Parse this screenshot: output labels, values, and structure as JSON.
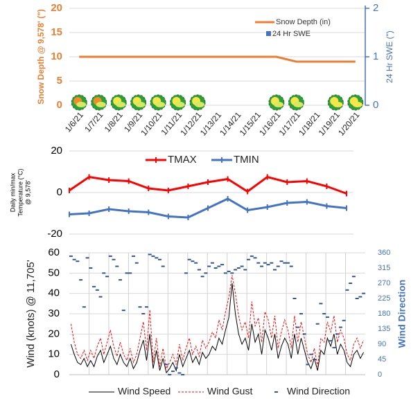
{
  "chart_data": [
    {
      "type": "line",
      "yaxis_label": "Snow Depth @ 9,578' (\")",
      "y2axis_label": "24 Hr SWE (\")",
      "categories": [
        "1/6/21",
        "1/7/21",
        "1/8/21",
        "1/9/21",
        "1/10/21",
        "1/11/21",
        "1/12/21",
        "1/13/21",
        "1/14/21",
        "1/15/21",
        "1/16/21",
        "1/17/21",
        "1/18/21",
        "1/19/21",
        "1/20/21"
      ],
      "series": [
        {
          "name": "Snow Depth (in)",
          "color": "#ed7d31",
          "style": "line",
          "values": [
            10,
            10,
            10,
            10,
            10,
            10,
            10,
            10,
            10,
            10,
            10,
            9,
            9,
            9,
            9
          ]
        },
        {
          "name": "24 Hr SWE",
          "color": "#4472c4",
          "style": "bar",
          "axis": "y2",
          "values": [
            0,
            0,
            0,
            0,
            0,
            0,
            0,
            0,
            0,
            0,
            0,
            0,
            0,
            0,
            0
          ]
        }
      ],
      "ylim": [
        0,
        20
      ],
      "yticks": [
        0,
        5,
        10,
        15,
        20
      ],
      "y2lim": [
        0,
        2
      ],
      "y2ticks": [
        0,
        1,
        2
      ],
      "grid": true
    },
    {
      "type": "line",
      "yaxis_label": [
        "Daily min/max",
        "Temperature (°C)",
        "@ 9,578'"
      ],
      "categories": [
        null,
        null,
        null,
        null,
        null,
        null,
        null,
        null,
        null,
        null,
        null,
        null,
        null,
        null,
        null
      ],
      "series": [
        {
          "name": "TMAX",
          "color": "#ff0000",
          "style": "line",
          "values": [
            1,
            7.5,
            6,
            5.5,
            2,
            1,
            3,
            5,
            6.5,
            0.5,
            7.5,
            5,
            5.5,
            3,
            -0.5
          ]
        },
        {
          "name": "TMIN",
          "color": "#4472c4",
          "style": "line",
          "values": [
            -10.5,
            -10,
            -8,
            -9,
            -9.5,
            -11.5,
            -12,
            -7.5,
            -3,
            -8.5,
            -7,
            -5,
            -4.5,
            -6.5,
            -7.5
          ]
        }
      ],
      "ylim": [
        -20,
        20
      ],
      "yticks": [
        -20,
        0,
        20
      ],
      "grid": true,
      "legend": "top"
    },
    {
      "type": "line",
      "yaxis_label": "Wind (knots) @ 11,705'",
      "y2axis_label": "Wind Direction",
      "series": [
        {
          "name": "Wind Speed",
          "color": "#000000",
          "style": "line",
          "values": [
            15,
            10,
            6,
            5,
            8,
            4,
            7,
            4,
            9,
            12,
            6,
            10,
            14,
            8,
            5,
            10,
            6,
            4,
            8,
            3,
            6,
            12,
            17,
            7,
            20,
            3,
            12,
            2,
            8,
            1,
            3,
            6,
            2,
            10,
            4,
            8,
            12,
            6,
            9,
            5,
            11,
            8,
            10,
            14,
            12,
            18,
            15,
            22,
            28,
            45,
            30,
            20,
            15,
            18,
            12,
            25,
            16,
            20,
            10,
            22,
            18,
            12,
            20,
            8,
            14,
            18,
            15,
            8,
            20,
            10,
            18,
            12,
            6,
            3,
            8,
            2,
            12,
            10,
            18,
            14,
            20,
            10,
            15,
            12,
            6,
            4,
            10,
            12,
            8,
            11
          ]
        },
        {
          "name": "Wind Gust",
          "color": "#ff0000",
          "style": "dashed",
          "values": [
            25,
            16,
            10,
            8,
            12,
            7,
            12,
            8,
            14,
            18,
            10,
            16,
            22,
            14,
            9,
            16,
            10,
            7,
            13,
            6,
            10,
            18,
            26,
            12,
            32,
            6,
            18,
            4,
            13,
            3,
            6,
            10,
            5,
            15,
            7,
            13,
            18,
            10,
            14,
            9,
            17,
            13,
            16,
            21,
            18,
            27,
            22,
            31,
            38,
            49,
            40,
            29,
            22,
            26,
            18,
            36,
            24,
            28,
            16,
            31,
            27,
            18,
            29,
            13,
            21,
            27,
            22,
            13,
            29,
            16,
            26,
            18,
            10,
            6,
            13,
            4,
            18,
            16,
            26,
            21,
            29,
            16,
            22,
            18,
            10,
            7,
            15,
            18,
            13,
            17
          ]
        },
        {
          "name": "Wind Direction",
          "color": "#2f5597",
          "style": "markers",
          "axis": "y2",
          "values": [
            350,
            340,
            335,
            280,
            200,
            345,
            315,
            260,
            250,
            230,
            300,
            290,
            350,
            340,
            320,
            280,
            190,
            300,
            300,
            350,
            330,
            200,
            180,
            200,
            355,
            350,
            345,
            340,
            320,
            30,
            0,
            10,
            20,
            5,
            0,
            300,
            340,
            335,
            330,
            310,
            290,
            300,
            320,
            330,
            315,
            320,
            325,
            300,
            305,
            300,
            310,
            315,
            320,
            310,
            340,
            350,
            345,
            330,
            320,
            330,
            325,
            330,
            310,
            320,
            335,
            330,
            330,
            320,
            225,
            140,
            180,
            120,
            30,
            60,
            45,
            150,
            210,
            180,
            170,
            100,
            80,
            120,
            140,
            160,
            250,
            270,
            290,
            225,
            230,
            240
          ]
        }
      ],
      "ylim": [
        0,
        60
      ],
      "yticks": [
        0,
        10,
        20,
        30,
        40,
        50,
        60
      ],
      "y2lim": [
        0,
        360
      ],
      "y2ticks": [
        0,
        45,
        90,
        135,
        180,
        225,
        270,
        315,
        360
      ],
      "grid": true,
      "legend": "bottom"
    }
  ]
}
